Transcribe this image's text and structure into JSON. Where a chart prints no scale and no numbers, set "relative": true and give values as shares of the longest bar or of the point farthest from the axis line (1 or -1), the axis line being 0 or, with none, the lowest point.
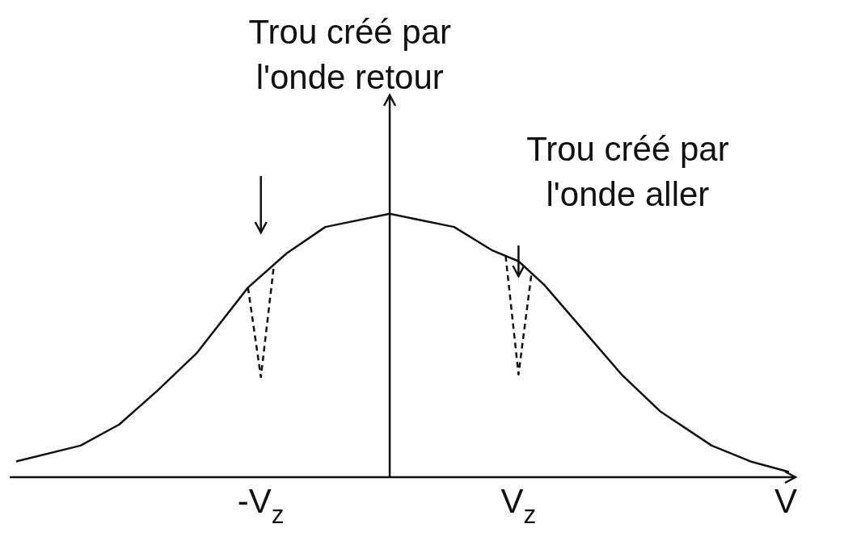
{
  "chart_data": {
    "type": "line",
    "relative": true,
    "xlabel": "V",
    "categories": [
      null,
      null,
      null,
      null,
      null,
      null,
      null,
      null,
      null,
      null,
      null,
      null,
      null,
      null,
      null,
      null,
      null,
      null,
      null,
      "-V$_{z}$",
      null,
      null,
      null,
      null,
      null,
      null,
      null,
      null,
      null,
      null,
      null,
      null,
      null,
      null,
      null,
      null,
      null,
      null,
      null,
      "V$_{z}$",
      null,
      null,
      null,
      null,
      null,
      null,
      null,
      null,
      null,
      null,
      null,
      null,
      null,
      null,
      null,
      null,
      null,
      null,
      null,
      null,
      null
    ],
    "annotations": [
      "Trou créé par\nl'onde retour",
      "Trou créé par\nl'onde aller"
    ],
    "series": [
      {
        "color": "#111111",
        "line_style": "solid",
        "values": [
          0.06,
          null,
          null,
          null,
          null,
          0.12,
          null,
          null,
          0.2,
          null,
          null,
          0.33,
          null,
          null,
          0.47,
          null,
          null,
          null,
          0.72,
          null,
          null,
          0.85,
          null,
          null,
          0.95,
          null,
          null,
          null,
          null,
          1,
          null,
          null,
          null,
          null,
          0.95,
          null,
          null,
          0.86,
          null,
          0.82,
          null,
          0.73,
          null,
          null,
          0.56,
          null,
          null,
          0.39,
          null,
          null,
          0.25,
          null,
          null,
          null,
          0.12,
          null,
          null,
          0.06,
          null,
          null,
          0.02
        ]
      },
      {
        "color": "#111111",
        "line_style": "dashed",
        "values": [
          null,
          null,
          null,
          null,
          null,
          null,
          null,
          null,
          null,
          null,
          null,
          null,
          null,
          null,
          null,
          null,
          null,
          null,
          0.72,
          0.38,
          0.8,
          null,
          null,
          null,
          null,
          null,
          null,
          null,
          null,
          null,
          null,
          null,
          null,
          null,
          null,
          null,
          null,
          null,
          null,
          null,
          null,
          null,
          null,
          null,
          null,
          null,
          null,
          null,
          null,
          null,
          null,
          null,
          null,
          null,
          null,
          null,
          null,
          null,
          null,
          null,
          null
        ]
      },
      {
        "color": "#111111",
        "line_style": "dashed",
        "values": [
          null,
          null,
          null,
          null,
          null,
          null,
          null,
          null,
          null,
          null,
          null,
          null,
          null,
          null,
          null,
          null,
          null,
          null,
          null,
          null,
          null,
          null,
          null,
          null,
          null,
          null,
          null,
          null,
          null,
          null,
          null,
          null,
          null,
          null,
          null,
          null,
          null,
          null,
          0.84,
          0.39,
          0.77,
          null,
          null,
          null,
          null,
          null,
          null,
          null,
          null,
          null,
          null,
          null,
          null,
          null,
          null,
          null,
          null,
          null,
          null,
          null,
          null
        ]
      }
    ]
  }
}
